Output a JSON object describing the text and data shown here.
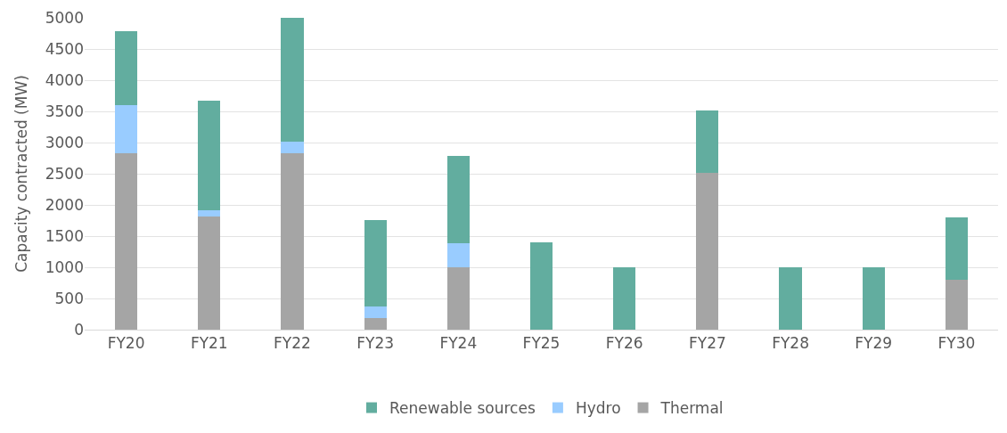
{
  "chart_data": {
    "type": "bar",
    "stacked": true,
    "ylabel": "Capacity contracted (MW)",
    "categories": [
      "FY20",
      "FY21",
      "FY22",
      "FY23",
      "FY24",
      "FY25",
      "FY26",
      "FY27",
      "FY28",
      "FY29",
      "FY30"
    ],
    "series": [
      {
        "name": "Thermal",
        "color": "#a5a5a5",
        "values": [
          2830,
          1820,
          2830,
          190,
          1000,
          0,
          0,
          2520,
          0,
          0,
          800
        ]
      },
      {
        "name": "Hydro",
        "color": "#99ccff",
        "values": [
          770,
          100,
          190,
          180,
          390,
          0,
          0,
          0,
          0,
          0,
          0
        ]
      },
      {
        "name": "Renewable sources",
        "color": "#62ad9f",
        "values": [
          1190,
          1750,
          1980,
          1390,
          1390,
          1400,
          1000,
          1000,
          1000,
          1000,
          1000
        ]
      }
    ],
    "ylim": [
      0,
      5000
    ],
    "yticks": [
      0,
      500,
      1000,
      1500,
      2000,
      2500,
      3000,
      3500,
      4000,
      4500,
      5000
    ],
    "grid": "y",
    "legend": "bottom"
  }
}
